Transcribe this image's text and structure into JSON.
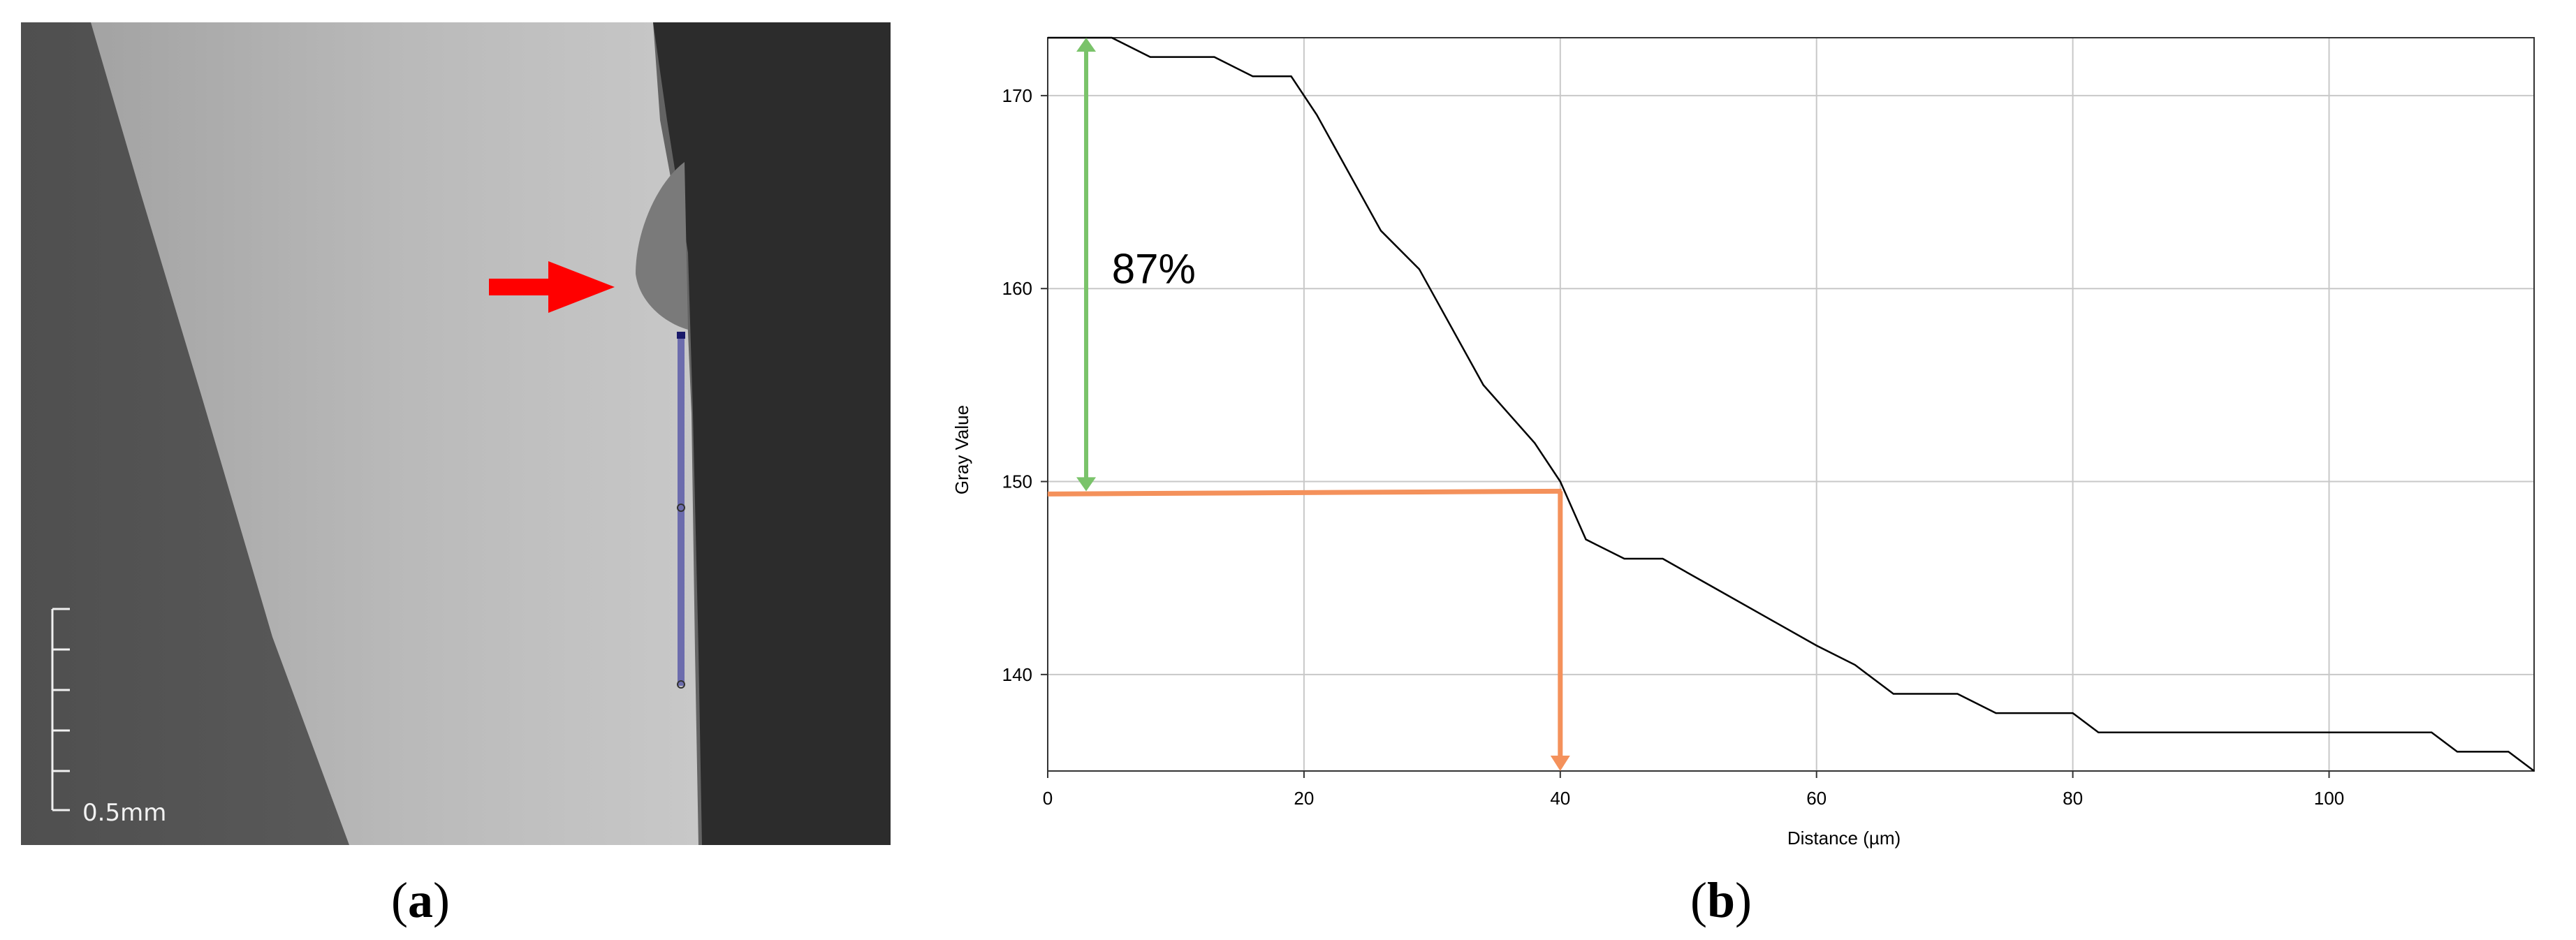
{
  "panel_a": {
    "scale_label": "0.5mm",
    "caption_letter": "a"
  },
  "panel_b": {
    "caption_letter": "b",
    "annotation": "87%"
  },
  "chart_data": {
    "type": "line",
    "title": "",
    "xlabel": "Distance (µm)",
    "ylabel": "Gray Value",
    "xlim": [
      0,
      116
    ],
    "ylim": [
      135,
      173
    ],
    "xticks": [
      0,
      20,
      40,
      60,
      80,
      100
    ],
    "yticks": [
      140,
      150,
      160,
      170
    ],
    "grid": true,
    "line_color": "#000000",
    "series": [
      {
        "x": [
          0,
          5,
          8,
          13,
          16,
          19,
          21,
          26,
          29,
          34,
          38,
          40,
          42,
          45,
          48,
          52,
          56,
          60,
          63,
          66,
          71,
          74,
          80,
          82,
          108,
          110,
          114,
          116
        ],
        "y": [
          173,
          173,
          172,
          172,
          171,
          171,
          169,
          163,
          161,
          155,
          152,
          150,
          147,
          146,
          146,
          144.5,
          143,
          141.5,
          140.5,
          139,
          139,
          138,
          138,
          137,
          137,
          136,
          136,
          135
        ]
      }
    ],
    "annotations": {
      "green_arrow": {
        "x": 3,
        "y_from": 173,
        "y_to": 149.5,
        "color": "#7ac36a"
      },
      "orange_h_line": {
        "x_from": 0,
        "x_to": 40,
        "y": 149.5,
        "color": "#f4915b"
      },
      "orange_v_arrow": {
        "x": 40,
        "y_from": 149.5,
        "y_to": 135,
        "color": "#f4915b"
      },
      "percent_label": {
        "text": "87%",
        "x": 5,
        "y": 161
      }
    }
  }
}
